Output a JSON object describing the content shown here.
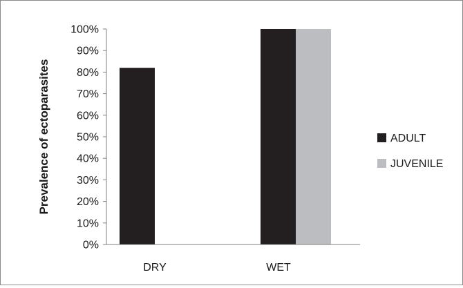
{
  "chart_data": {
    "type": "bar",
    "categories": [
      "DRY",
      "WET"
    ],
    "series": [
      {
        "name": "ADULT",
        "values": [
          82,
          100
        ],
        "color": "#231f20"
      },
      {
        "name": "JUVENILE",
        "values": [
          null,
          100
        ],
        "color": "#bcbdc0"
      }
    ],
    "ylabel": "Prevalence of ectoparasites",
    "ylim": [
      0,
      100
    ],
    "yticks": [
      0,
      10,
      20,
      30,
      40,
      50,
      60,
      70,
      80,
      90,
      100
    ],
    "ytick_labels": [
      "0%",
      "10%",
      "20%",
      "30%",
      "40%",
      "50%",
      "60%",
      "70%",
      "80%",
      "90%",
      "100%"
    ],
    "grid": false,
    "legend_position": "right"
  }
}
